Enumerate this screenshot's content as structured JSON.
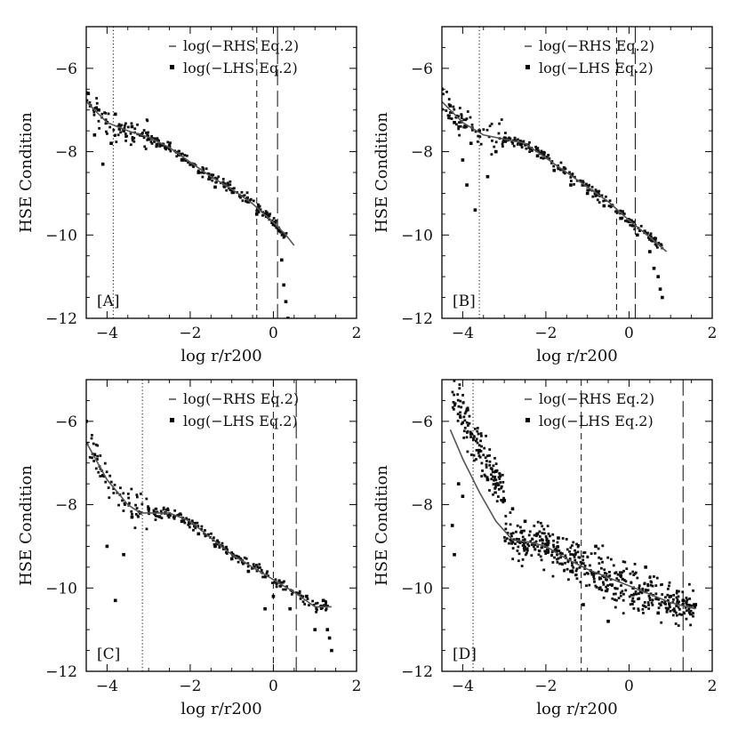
{
  "figure": {
    "panels": [
      {
        "tag": "[A]",
        "xlabel": "log r/r200",
        "ylabel": "HSE Condition",
        "legend": [
          "log(−RHS Eq.2)",
          "log(−LHS Eq.2)"
        ]
      },
      {
        "tag": "[B]",
        "xlabel": "log r/r200",
        "ylabel": "HSE Condition",
        "legend": [
          "log(−RHS Eq.2)",
          "log(−LHS Eq.2)"
        ]
      },
      {
        "tag": "[C]",
        "xlabel": "log r/r200",
        "ylabel": "HSE Condition",
        "legend": [
          "log(−RHS Eq.2)",
          "log(−LHS Eq.2)"
        ]
      },
      {
        "tag": "[D]",
        "xlabel": "log r/r200",
        "ylabel": "HSE Condition",
        "legend": [
          "log(−RHS Eq.2)",
          "log(−LHS Eq.2)"
        ]
      }
    ]
  },
  "chart_data": [
    {
      "type": "scatter",
      "panel": "[A]",
      "xlabel": "log r/r200",
      "ylabel": "HSE Condition",
      "xlim": [
        -4.5,
        2
      ],
      "ylim": [
        -12,
        -5
      ],
      "xticks": [
        -4,
        -2,
        0,
        2
      ],
      "yticks": [
        -6,
        -8,
        -10,
        -12
      ],
      "grid": false,
      "legend_position": "top-right",
      "series": [
        {
          "name": "log(−RHS Eq.2)",
          "kind": "line",
          "x": [
            -4.5,
            -4.0,
            -3.5,
            -3.0,
            -2.5,
            -2.0,
            -1.5,
            -1.0,
            -0.5,
            0.0,
            0.3,
            0.5
          ],
          "y": [
            -6.8,
            -7.3,
            -7.5,
            -7.65,
            -7.9,
            -8.25,
            -8.6,
            -8.9,
            -9.25,
            -9.7,
            -10.0,
            -10.25
          ]
        },
        {
          "name": "log(−LHS Eq.2)",
          "kind": "points",
          "x": [
            -4.5,
            -4.4,
            -4.3,
            -4.2,
            -4.1,
            -4.0,
            -3.9,
            -3.8,
            -3.6,
            -3.4,
            -3.2,
            -3.0,
            -2.6,
            -2.2,
            -1.8,
            -1.4,
            -1.0,
            -0.6,
            -0.4,
            -0.2,
            0.0,
            0.15,
            0.2,
            0.25,
            0.3,
            0.35
          ],
          "y": [
            -6.6,
            -6.9,
            -7.6,
            -7.0,
            -8.3,
            -7.3,
            -7.8,
            -7.1,
            -7.5,
            -7.4,
            -7.6,
            -7.7,
            -7.9,
            -8.2,
            -8.5,
            -8.85,
            -8.9,
            -9.2,
            -9.5,
            -9.5,
            -9.75,
            -9.9,
            -10.6,
            -11.2,
            -11.6,
            -12.0
          ]
        }
      ],
      "markers": [
        {
          "style": "dotted",
          "x": -3.85
        },
        {
          "style": "short-dashed",
          "x": -0.4
        },
        {
          "style": "long-dashed",
          "x": 0.1
        }
      ]
    },
    {
      "type": "scatter",
      "panel": "[B]",
      "xlabel": "log r/r200",
      "ylabel": "HSE Condition",
      "xlim": [
        -4.5,
        2
      ],
      "ylim": [
        -12,
        -5
      ],
      "xticks": [
        -4,
        -2,
        0,
        2
      ],
      "yticks": [
        -6,
        -8,
        -10,
        -12
      ],
      "grid": false,
      "legend_position": "top-right",
      "series": [
        {
          "name": "log(−RHS Eq.2)",
          "kind": "line",
          "x": [
            -4.5,
            -4.0,
            -3.5,
            -3.0,
            -2.5,
            -2.0,
            -1.5,
            -1.0,
            -0.5,
            0.0,
            0.5,
            0.9
          ],
          "y": [
            -6.8,
            -7.3,
            -7.6,
            -7.7,
            -7.8,
            -8.15,
            -8.5,
            -8.85,
            -9.2,
            -9.65,
            -10.05,
            -10.4
          ]
        },
        {
          "name": "log(−LHS Eq.2)",
          "kind": "points",
          "x": [
            -4.5,
            -4.3,
            -4.2,
            -4.0,
            -3.9,
            -3.8,
            -3.7,
            -3.6,
            -3.4,
            -3.2,
            -3.0,
            -2.6,
            -2.2,
            -1.8,
            -1.4,
            -1.0,
            -0.6,
            -0.2,
            0.2,
            0.5,
            0.6,
            0.7,
            0.75,
            0.8
          ],
          "y": [
            -6.5,
            -6.9,
            -7.3,
            -8.2,
            -8.8,
            -7.8,
            -9.4,
            -7.5,
            -8.6,
            -8.0,
            -7.7,
            -7.8,
            -8.1,
            -8.45,
            -8.8,
            -9.0,
            -9.3,
            -9.6,
            -10.0,
            -10.4,
            -10.8,
            -11.0,
            -11.3,
            -11.5
          ]
        }
      ],
      "markers": [
        {
          "style": "dotted",
          "x": -3.6
        },
        {
          "style": "short-dashed",
          "x": -0.3
        },
        {
          "style": "long-dashed",
          "x": 0.15
        }
      ]
    },
    {
      "type": "scatter",
      "panel": "[C]",
      "xlabel": "log r/r200",
      "ylabel": "HSE Condition",
      "xlim": [
        -4.5,
        2
      ],
      "ylim": [
        -12,
        -5
      ],
      "xticks": [
        -4,
        -2,
        0,
        2
      ],
      "yticks": [
        -6,
        -8,
        -10,
        -12
      ],
      "grid": false,
      "legend_position": "top-right",
      "series": [
        {
          "name": "log(−RHS Eq.2)",
          "kind": "line",
          "x": [
            -4.5,
            -4.0,
            -3.5,
            -3.2,
            -3.0,
            -2.5,
            -2.0,
            -1.5,
            -1.0,
            -0.5,
            0.0,
            0.5,
            1.0,
            1.4
          ],
          "y": [
            -6.5,
            -7.4,
            -8.0,
            -8.2,
            -8.2,
            -8.2,
            -8.4,
            -8.8,
            -9.2,
            -9.5,
            -9.8,
            -10.1,
            -10.45,
            -10.45
          ]
        },
        {
          "name": "log(−LHS Eq.2)",
          "kind": "points",
          "x": [
            -4.5,
            -4.3,
            -4.1,
            -4.0,
            -3.8,
            -3.6,
            -3.4,
            -3.2,
            -3.0,
            -2.6,
            -2.2,
            -1.8,
            -1.4,
            -1.0,
            -0.6,
            -0.2,
            0.0,
            0.4,
            0.8,
            1.0,
            1.2,
            1.3,
            1.35,
            1.4
          ],
          "y": [
            -6.0,
            -6.8,
            -7.3,
            -9.0,
            -10.3,
            -9.2,
            -8.3,
            -8.2,
            -8.1,
            -8.2,
            -8.4,
            -8.7,
            -9.0,
            -9.3,
            -9.6,
            -10.5,
            -10.2,
            -10.5,
            -10.2,
            -11.0,
            -10.3,
            -11.0,
            -11.2,
            -11.5
          ]
        }
      ],
      "markers": [
        {
          "style": "dotted",
          "x": -3.15
        },
        {
          "style": "short-dashed",
          "x": 0.0
        },
        {
          "style": "long-dashed",
          "x": 0.55
        }
      ]
    },
    {
      "type": "scatter",
      "panel": "[D]",
      "xlabel": "log r/r200",
      "ylabel": "HSE Condition",
      "xlim": [
        -4.5,
        2
      ],
      "ylim": [
        -12,
        -5
      ],
      "xticks": [
        -4,
        -2,
        0,
        2
      ],
      "yticks": [
        -6,
        -8,
        -10,
        -12
      ],
      "grid": false,
      "legend_position": "top-right",
      "series": [
        {
          "name": "log(−RHS Eq.2)",
          "kind": "line",
          "x": [
            -4.3,
            -4.0,
            -3.6,
            -3.2,
            -2.8,
            -2.4,
            -2.0,
            -1.5,
            -1.0,
            -0.5,
            0.0,
            0.5,
            1.0,
            1.6
          ],
          "y": [
            -6.2,
            -6.9,
            -7.7,
            -8.4,
            -8.85,
            -8.9,
            -9.0,
            -9.3,
            -9.55,
            -9.75,
            -9.95,
            -10.15,
            -10.35,
            -10.5
          ]
        },
        {
          "name": "log(−LHS Eq.2)",
          "kind": "points",
          "x": [
            -4.25,
            -4.2,
            -4.1,
            -4.0,
            -3.8,
            -3.6,
            -3.4,
            -3.2,
            -3.0,
            -2.8,
            -2.5,
            -2.2,
            -2.0,
            -1.7,
            -1.4,
            -1.1,
            -0.8,
            -0.5,
            -0.2,
            0.1,
            0.4,
            0.7,
            1.0,
            1.3,
            1.6
          ],
          "y": [
            -8.5,
            -9.2,
            -7.5,
            -7.8,
            -6.3,
            -6.7,
            -7.4,
            -7.2,
            -7.9,
            -8.1,
            -8.4,
            -8.7,
            -9.0,
            -8.8,
            -9.6,
            -10.4,
            -9.0,
            -10.8,
            -9.7,
            -10.0,
            -9.5,
            -10.6,
            -10.2,
            -10.3,
            -10.4
          ]
        }
      ],
      "markers": [
        {
          "style": "dotted",
          "x": -3.75
        },
        {
          "style": "short-dashed",
          "x": -1.15
        },
        {
          "style": "long-dashed",
          "x": 1.3
        }
      ]
    }
  ]
}
